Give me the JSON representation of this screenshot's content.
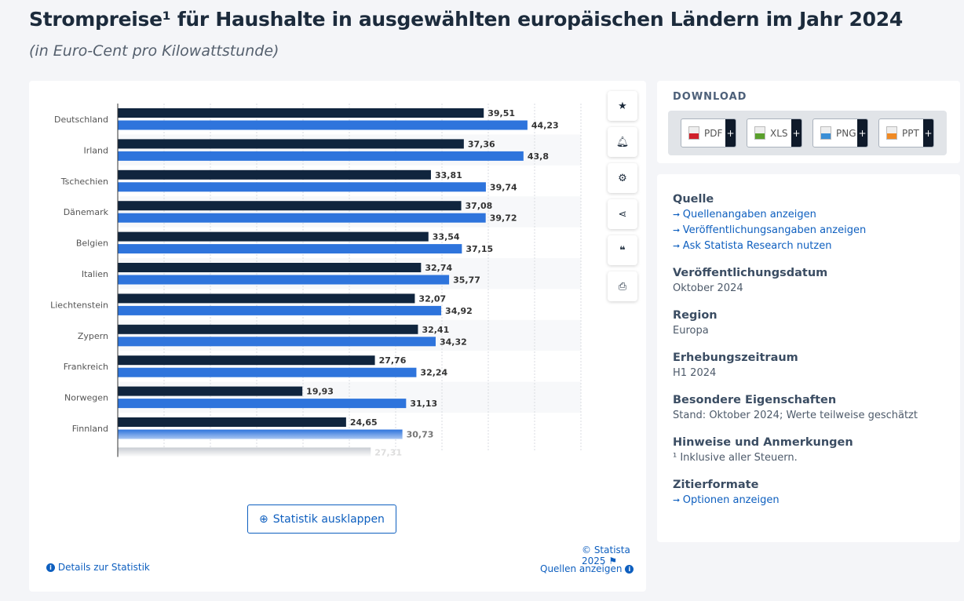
{
  "title": "Strompreise¹ für Haushalte in ausgewählten europäischen Ländern im Jahr 2024",
  "subtitle": "(in Euro-Cent pro Kilowattstunde)",
  "chart_data": {
    "type": "bar",
    "orientation": "horizontal",
    "categories": [
      "Deutschland",
      "Irland",
      "Tschechien",
      "Dänemark",
      "Belgien",
      "Italien",
      "Liechtenstein",
      "Zypern",
      "Frankreich",
      "Norwegen",
      "Finnland"
    ],
    "series": [
      {
        "name": "series-1",
        "color": "#10253e",
        "values": [
          39.51,
          37.36,
          33.81,
          37.08,
          33.54,
          32.74,
          32.07,
          32.41,
          27.76,
          19.93,
          24.65
        ]
      },
      {
        "name": "series-2",
        "color": "#2e74dc",
        "values": [
          44.23,
          43.8,
          39.74,
          39.72,
          37.15,
          35.77,
          34.92,
          34.32,
          32.24,
          31.13,
          30.73
        ]
      }
    ],
    "labels": [
      [
        "39,51",
        "44,23"
      ],
      [
        "37,36",
        "43,8"
      ],
      [
        "33,81",
        "39,74"
      ],
      [
        "37,08",
        "39,72"
      ],
      [
        "33,54",
        "37,15"
      ],
      [
        "32,74",
        "35,77"
      ],
      [
        "32,07",
        "34,92"
      ],
      [
        "32,41",
        "34,32"
      ],
      [
        "27,76",
        "32,24"
      ],
      [
        "19,93",
        "31,13"
      ],
      [
        "24,65",
        "30,73"
      ]
    ],
    "faded_next": {
      "value": 27.31,
      "label": "27,31"
    },
    "xlim": [
      0,
      50
    ],
    "grid": true,
    "grid_step": 5
  },
  "actions": {
    "expand": "Statistik ausklappen",
    "details": "Details zur Statistik",
    "copyright": "© Statista 2025",
    "sources": "Quellen anzeigen"
  },
  "download": {
    "heading": "DOWNLOAD",
    "formats": [
      {
        "label": "PDF",
        "color": "#d0202a"
      },
      {
        "label": "XLS",
        "color": "#5aa02c"
      },
      {
        "label": "PNG",
        "color": "#3b8fd6"
      },
      {
        "label": "PPT",
        "color": "#f08a24"
      }
    ],
    "plus": "+"
  },
  "info": {
    "source_heading": "Quelle",
    "source_links": [
      "Quellenangaben anzeigen",
      "Veröffentlichungsangaben anzeigen",
      "Ask Statista Research nutzen"
    ],
    "pubdate_heading": "Veröffentlichungsdatum",
    "pubdate": "Oktober 2024",
    "region_heading": "Region",
    "region": "Europa",
    "period_heading": "Erhebungszeitraum",
    "period": "H1 2024",
    "special_heading": "Besondere Eigenschaften",
    "special": "Stand: Oktober 2024; Werte teilweise geschätzt",
    "notes_heading": "Hinweise und Anmerkungen",
    "notes": "¹ Inklusive aller Steuern.",
    "cite_heading": "Zitierformate",
    "cite_link": "Optionen anzeigen"
  }
}
